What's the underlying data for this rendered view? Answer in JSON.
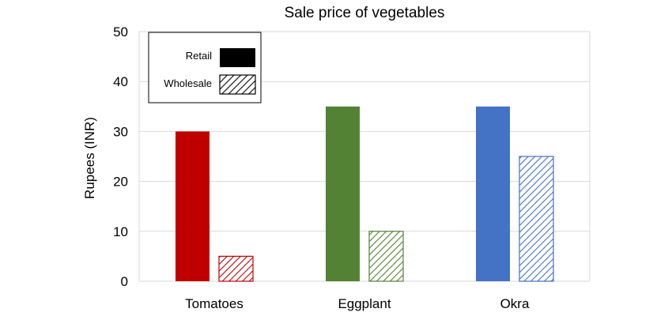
{
  "chart_data": {
    "type": "bar",
    "title": "Sale price of vegetables",
    "xlabel": "",
    "ylabel": "Rupees (INR)",
    "categories": [
      "Tomatoes",
      "Eggplant",
      "Okra"
    ],
    "series": [
      {
        "name": "Retail",
        "values": [
          30,
          35,
          35
        ],
        "fill": "solid",
        "colors": [
          "#C00000",
          "#548235",
          "#4472C4"
        ]
      },
      {
        "name": "Wholesale",
        "values": [
          5,
          10,
          25
        ],
        "fill": "hatched",
        "colors": [
          "#C00000",
          "#548235",
          "#4472C4"
        ]
      }
    ],
    "ylim": [
      0,
      50
    ],
    "yticks": [
      0,
      10,
      20,
      30,
      40,
      50
    ],
    "grid": true,
    "legend": "top-left",
    "legend_entries": [
      {
        "label": "Retail",
        "swatch": "solid",
        "color": "#000000"
      },
      {
        "label": "Wholesale",
        "swatch": "hatched",
        "color": "#000000"
      }
    ]
  }
}
